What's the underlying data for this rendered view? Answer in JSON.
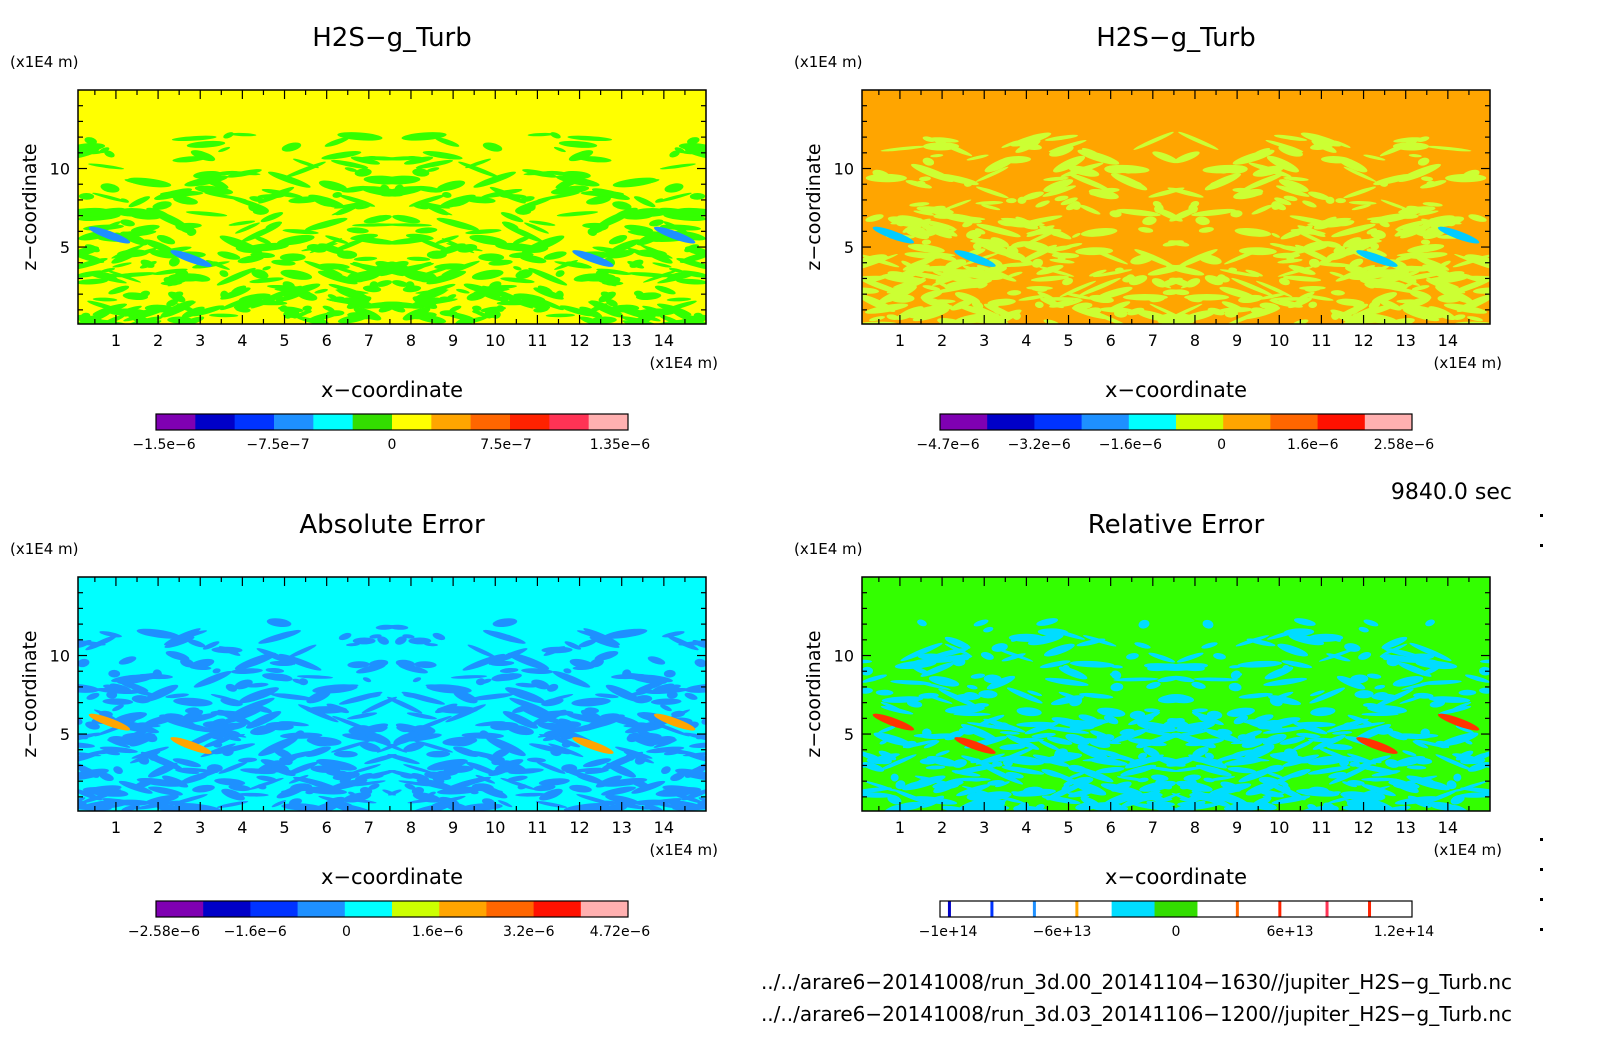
{
  "colors": {
    "axis": "#000000",
    "background": "#ffffff"
  },
  "panels": [
    {
      "id": "tl",
      "title": "H2S−g_Turb",
      "ylabel": "z−coordinate",
      "xlabel": "x−coordinate",
      "unit_y": "(x1E4 m)",
      "unit_x": "(x1E4 m)",
      "xticks": [
        "1",
        "2",
        "3",
        "4",
        "5",
        "6",
        "7",
        "8",
        "9",
        "10",
        "11",
        "12",
        "13",
        "14"
      ],
      "yticks": [
        "5",
        "10"
      ],
      "base_color": "#ffff00",
      "secondary_color": "#33ff00",
      "feature_color": "#1e90ff",
      "colorbar": {
        "colors": [
          "#7f00b2",
          "#0000c8",
          "#0033ff",
          "#1e90ff",
          "#00ffff",
          "#33dd00",
          "#ffff00",
          "#ffa500",
          "#ff6600",
          "#ff2200",
          "#ff3355",
          "#ffb0b0"
        ],
        "labels": [
          "−1.5e−6",
          "−7.5e−7",
          "0",
          "7.5e−7",
          "1.35e−6"
        ]
      }
    },
    {
      "id": "tr",
      "title": "H2S−g_Turb",
      "ylabel": "z−coordinate",
      "xlabel": "x−coordinate",
      "unit_y": "(x1E4 m)",
      "unit_x": "(x1E4 m)",
      "xticks": [
        "1",
        "2",
        "3",
        "4",
        "5",
        "6",
        "7",
        "8",
        "9",
        "10",
        "11",
        "12",
        "13",
        "14"
      ],
      "yticks": [
        "5",
        "10"
      ],
      "base_color": "#ffa500",
      "secondary_color": "#ccff33",
      "feature_color": "#00ccff",
      "colorbar": {
        "colors": [
          "#7f00b2",
          "#0000c8",
          "#0033ff",
          "#1e90ff",
          "#00ffff",
          "#ccff00",
          "#ffa500",
          "#ff6600",
          "#ff1100",
          "#ffb0b0"
        ],
        "labels": [
          "−4.7e−6",
          "−3.2e−6",
          "−1.6e−6",
          "0",
          "1.6e−6",
          "2.58e−6"
        ]
      }
    },
    {
      "id": "bl",
      "title": "Absolute Error",
      "ylabel": "z−coordinate",
      "xlabel": "x−coordinate",
      "unit_y": "(x1E4 m)",
      "unit_x": "(x1E4 m)",
      "xticks": [
        "1",
        "2",
        "3",
        "4",
        "5",
        "6",
        "7",
        "8",
        "9",
        "10",
        "11",
        "12",
        "13",
        "14"
      ],
      "yticks": [
        "5",
        "10"
      ],
      "base_color": "#00ffff",
      "secondary_color": "#1e90ff",
      "feature_color": "#ffa500",
      "colorbar": {
        "colors": [
          "#7f00b2",
          "#0000c8",
          "#0033ff",
          "#1e90ff",
          "#00ffff",
          "#ccff00",
          "#ffa500",
          "#ff6600",
          "#ff1100",
          "#ffb0b0"
        ],
        "labels": [
          "−2.58e−6",
          "−1.6e−6",
          "0",
          "1.6e−6",
          "3.2e−6",
          "4.72e−6"
        ]
      }
    },
    {
      "id": "br",
      "title": "Relative Error",
      "ylabel": "z−coordinate",
      "xlabel": "x−coordinate",
      "unit_y": "(x1E4 m)",
      "unit_x": "(x1E4 m)",
      "xticks": [
        "1",
        "2",
        "3",
        "4",
        "5",
        "6",
        "7",
        "8",
        "9",
        "10",
        "11",
        "12",
        "13",
        "14"
      ],
      "yticks": [
        "5",
        "10"
      ],
      "base_color": "#33ff00",
      "secondary_color": "#00ddff",
      "feature_color": "#ff3300",
      "colorbar": {
        "colors": [
          "#ffffff",
          "#ffffff",
          "#ffffff",
          "#ffffff",
          "#00ddff",
          "#33dd00",
          "#ffffff",
          "#ffffff",
          "#ffffff",
          "#ffffff",
          "#ffffff"
        ],
        "labels": [
          "−1e+14",
          "−6e+13",
          "0",
          "6e+13",
          "1.2e+14"
        ]
      }
    }
  ],
  "time_label": "9840.0 sec",
  "file_lines": [
    "../../arare6−20141008/run_3d.00_20141104−1630//jupiter_H2S−g_Turb.nc",
    "../../arare6−20141008/run_3d.03_20141106−1200//jupiter_H2S−g_Turb.nc"
  ],
  "chart_data": [
    {
      "type": "heatmap",
      "title": "H2S−g_Turb",
      "xlabel": "x−coordinate",
      "ylabel": "z−coordinate",
      "xunit": "(x1E4 m)",
      "yunit": "(x1E4 m)",
      "xlim": [
        0.1,
        15
      ],
      "ylim": [
        0.1,
        15
      ],
      "xticks": [
        1,
        2,
        3,
        4,
        5,
        6,
        7,
        8,
        9,
        10,
        11,
        12,
        13,
        14
      ],
      "yticks": [
        5,
        10
      ],
      "colorbar_ticks": [
        "−1.5e−6",
        "−7.5e−7",
        "0",
        "7.5e−7",
        "1.35e−6"
      ]
    },
    {
      "type": "heatmap",
      "title": "H2S−g_Turb",
      "xlabel": "x−coordinate",
      "ylabel": "z−coordinate",
      "xunit": "(x1E4 m)",
      "yunit": "(x1E4 m)",
      "xlim": [
        0.1,
        15
      ],
      "ylim": [
        0.1,
        15
      ],
      "xticks": [
        1,
        2,
        3,
        4,
        5,
        6,
        7,
        8,
        9,
        10,
        11,
        12,
        13,
        14
      ],
      "yticks": [
        5,
        10
      ],
      "colorbar_ticks": [
        "−4.7e−6",
        "−3.2e−6",
        "−1.6e−6",
        "0",
        "1.6e−6",
        "2.58e−6"
      ]
    },
    {
      "type": "heatmap",
      "title": "Absolute Error",
      "xlabel": "x−coordinate",
      "ylabel": "z−coordinate",
      "xunit": "(x1E4 m)",
      "yunit": "(x1E4 m)",
      "xlim": [
        0.1,
        15
      ],
      "ylim": [
        0.1,
        15
      ],
      "xticks": [
        1,
        2,
        3,
        4,
        5,
        6,
        7,
        8,
        9,
        10,
        11,
        12,
        13,
        14
      ],
      "yticks": [
        5,
        10
      ],
      "colorbar_ticks": [
        "−2.58e−6",
        "−1.6e−6",
        "0",
        "1.6e−6",
        "3.2e−6",
        "4.72e−6"
      ]
    },
    {
      "type": "heatmap",
      "title": "Relative Error",
      "xlabel": "x−coordinate",
      "ylabel": "z−coordinate",
      "xunit": "(x1E4 m)",
      "yunit": "(x1E4 m)",
      "xlim": [
        0.1,
        15
      ],
      "ylim": [
        0.1,
        15
      ],
      "xticks": [
        1,
        2,
        3,
        4,
        5,
        6,
        7,
        8,
        9,
        10,
        11,
        12,
        13,
        14
      ],
      "yticks": [
        5,
        10
      ],
      "colorbar_ticks": [
        "−1e+14",
        "−6e+13",
        "0",
        "6e+13",
        "1.2e+14"
      ]
    }
  ]
}
